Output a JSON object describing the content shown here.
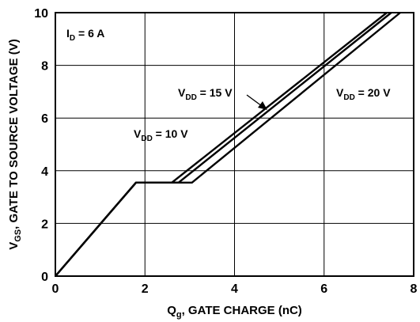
{
  "chart_data": {
    "type": "line",
    "xlabel": {
      "main": "Q",
      "sub": "g",
      "rest": ", GATE CHARGE (nC)"
    },
    "ylabel": {
      "main": "V",
      "sub": "GS",
      "rest": ", GATE TO SOURCE VOLTAGE (V)"
    },
    "xlim": [
      0,
      8
    ],
    "ylim": [
      0,
      10
    ],
    "xticks": [
      0,
      2,
      4,
      6,
      8
    ],
    "yticks": [
      0,
      2,
      4,
      6,
      8,
      10
    ],
    "grid": true,
    "annotations": [
      {
        "main": "I",
        "sub": "D",
        "rest": " = 6 A"
      },
      {
        "main": "V",
        "sub": "DD",
        "rest": " = 10 V"
      },
      {
        "main": "V",
        "sub": "DD",
        "rest": " = 15 V"
      },
      {
        "main": "V",
        "sub": "DD",
        "rest": " = 20 V"
      }
    ],
    "series": [
      {
        "x": [
          0,
          1.8,
          2.6,
          7.4
        ],
        "y": [
          0,
          3.55,
          3.55,
          10
        ]
      },
      {
        "x": [
          0,
          1.8,
          2.75,
          7.5
        ],
        "y": [
          0,
          3.55,
          3.55,
          10
        ]
      },
      {
        "x": [
          0,
          1.8,
          3.05,
          7.7
        ],
        "y": [
          0,
          3.55,
          3.55,
          10
        ]
      }
    ]
  }
}
